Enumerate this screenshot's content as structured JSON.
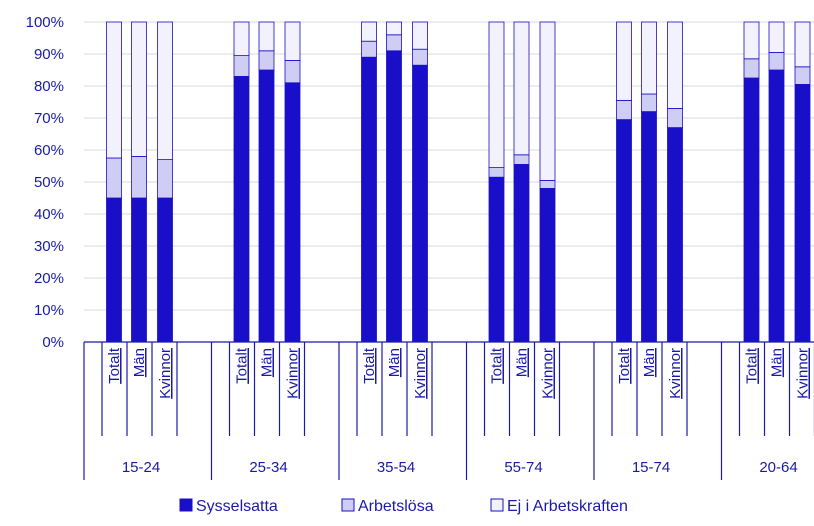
{
  "chart_data": {
    "type": "bar",
    "stacked": true,
    "y_axis": {
      "ylim": [
        0,
        100
      ],
      "ticks": [
        "0%",
        "10%",
        "20%",
        "30%",
        "40%",
        "50%",
        "60%",
        "70%",
        "80%",
        "90%",
        "100%"
      ]
    },
    "groups": [
      {
        "label": "15-24",
        "categories": [
          "Totalt",
          "Män",
          "Kvinnor"
        ]
      },
      {
        "label": "25-34",
        "categories": [
          "Totalt",
          "Män",
          "Kvinnor"
        ]
      },
      {
        "label": "35-54",
        "categories": [
          "Totalt",
          "Män",
          "Kvinnor"
        ]
      },
      {
        "label": "55-74",
        "categories": [
          "Totalt",
          "Män",
          "Kvinnor"
        ]
      },
      {
        "label": "15-74",
        "categories": [
          "Totalt",
          "Män",
          "Kvinnor"
        ]
      },
      {
        "label": "20-64",
        "categories": [
          "Totalt",
          "Män",
          "Kvinnor"
        ]
      }
    ],
    "series": [
      {
        "name": "Sysselsatta",
        "color": "#1a0fc8",
        "values": [
          45,
          45,
          45,
          83,
          85,
          81,
          89,
          91,
          86.5,
          51.5,
          55.5,
          48,
          69.5,
          72,
          67,
          82.5,
          85,
          80.5
        ]
      },
      {
        "name": "Arbetslösa",
        "color": "#cfcdf3",
        "values": [
          12.5,
          13,
          12,
          6.5,
          6,
          7,
          5,
          5,
          5,
          3,
          3,
          2.5,
          6,
          5.5,
          6,
          6,
          5.5,
          5.5
        ]
      },
      {
        "name": "Ej i Arbetskraften",
        "color": "#f2f1fd",
        "values": [
          42.5,
          42,
          43,
          10.5,
          9,
          12,
          6,
          4,
          8.5,
          45.5,
          41.5,
          49.5,
          24.5,
          22.5,
          27,
          11.5,
          9.5,
          14
        ]
      }
    ],
    "legend_position": "bottom"
  }
}
